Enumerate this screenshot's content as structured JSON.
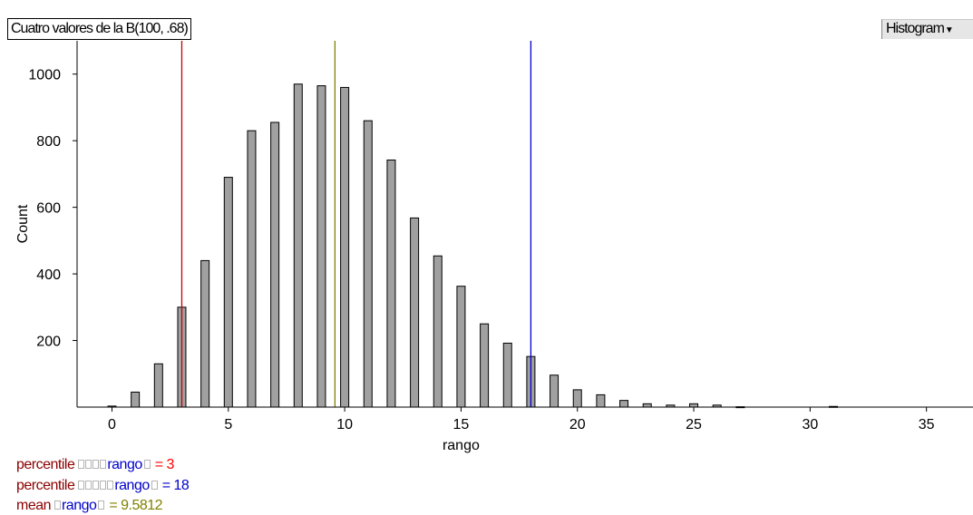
{
  "title": "Cuatro valores de la B(100, .68)",
  "view_menu": {
    "label": "Histogram",
    "arrow_icon": "triangle-down-icon"
  },
  "chart_data": {
    "type": "bar",
    "xlabel": "rango",
    "ylabel": "Count",
    "xlim": [
      -1.5,
      37
    ],
    "ylim": [
      0,
      1100
    ],
    "xticks": [
      0,
      5,
      10,
      15,
      20,
      25,
      30,
      35
    ],
    "yticks": [
      200,
      400,
      600,
      800,
      1000
    ],
    "grid": false,
    "categories": [
      0,
      1,
      2,
      3,
      4,
      5,
      6,
      7,
      8,
      9,
      10,
      11,
      12,
      13,
      14,
      15,
      16,
      17,
      18,
      19,
      20,
      21,
      22,
      23,
      24,
      25,
      26,
      27,
      31
    ],
    "values": [
      3,
      45,
      130,
      300,
      440,
      690,
      830,
      855,
      970,
      965,
      960,
      860,
      742,
      568,
      454,
      363,
      250,
      192,
      152,
      96,
      52,
      37,
      20,
      10,
      6,
      10,
      6,
      1,
      2
    ],
    "bar_color": "#a0a0a0",
    "reference_lines": [
      {
        "label": "percentile",
        "measure": "rango",
        "value": 3,
        "color": "#cc0000"
      },
      {
        "label": "percentile",
        "measure": "rango",
        "value": 18,
        "color": "#0000cc"
      },
      {
        "label": "mean",
        "measure": "rango",
        "value": 9.5812,
        "color": "#808000"
      }
    ]
  },
  "legend": [
    {
      "label": "percentile",
      "boxes": 4,
      "measure": "rango",
      "equals": " = 3",
      "label_color": "#8b0000",
      "measure_color": "#0000cc",
      "value_color": "#ff0000"
    },
    {
      "label": "percentile",
      "boxes": 5,
      "measure": "rango",
      "equals": " = 18",
      "label_color": "#8b0000",
      "measure_color": "#0000cc",
      "value_color": "#0000cc"
    },
    {
      "label": "mean",
      "boxes": 1,
      "measure": "rango",
      "equals": " = 9.5812",
      "label_color": "#8b0000",
      "measure_color": "#0000cc",
      "value_color": "#808000"
    }
  ]
}
